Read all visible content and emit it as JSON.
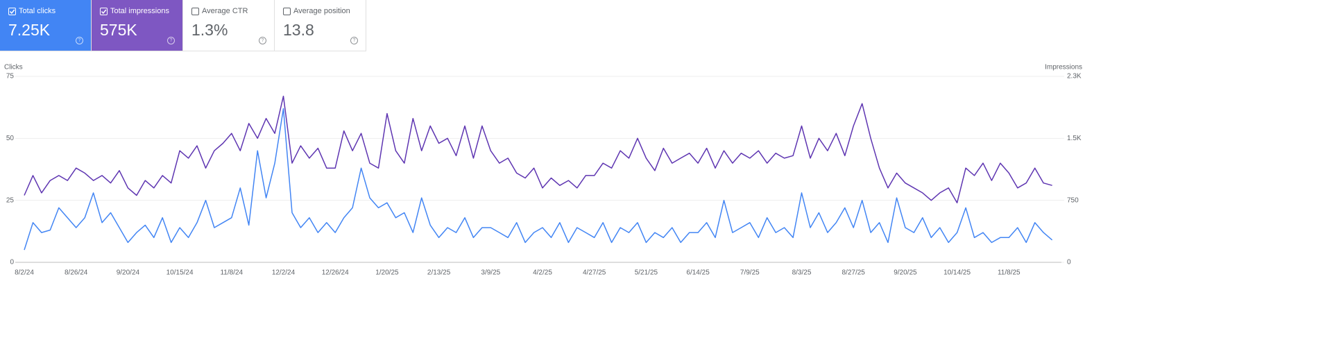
{
  "cards": [
    {
      "label": "Total clicks",
      "value": "7.25K",
      "checked": true,
      "bg": "#4285f4",
      "fg": "#ffffff"
    },
    {
      "label": "Total impressions",
      "value": "575K",
      "checked": true,
      "bg": "#7e57c2",
      "fg": "#ffffff"
    },
    {
      "label": "Average CTR",
      "value": "1.3%",
      "checked": false,
      "bg": "#ffffff",
      "fg": "#5f6368"
    },
    {
      "label": "Average position",
      "value": "13.8",
      "checked": false,
      "bg": "#ffffff",
      "fg": "#5f6368"
    }
  ],
  "chart_data": {
    "type": "line",
    "categories": [
      "8/2/24",
      null,
      null,
      null,
      null,
      null,
      "8/26/24",
      null,
      null,
      null,
      null,
      null,
      "9/20/24",
      null,
      null,
      null,
      null,
      null,
      "10/15/24",
      null,
      null,
      null,
      null,
      null,
      "11/8/24",
      null,
      null,
      null,
      null,
      null,
      "12/2/24",
      null,
      null,
      null,
      null,
      null,
      "12/26/24",
      null,
      null,
      null,
      null,
      null,
      "1/20/25",
      null,
      null,
      null,
      null,
      null,
      "2/13/25",
      null,
      null,
      null,
      null,
      null,
      "3/9/25",
      null,
      null,
      null,
      null,
      null,
      "4/2/25",
      null,
      null,
      null,
      null,
      null,
      "4/27/25",
      null,
      null,
      null,
      null,
      null,
      "5/21/25",
      null,
      null,
      null,
      null,
      null,
      "6/14/25",
      null,
      null,
      null,
      null,
      null,
      "7/9/25",
      null,
      null,
      null,
      null,
      null,
      "8/3/25",
      null,
      null,
      null,
      null,
      null,
      "8/27/25",
      null,
      null,
      null,
      null,
      null,
      "9/20/25",
      null,
      null,
      null,
      null,
      null,
      "10/14/25",
      null,
      null,
      null,
      null,
      null,
      "11/8/25",
      null,
      null,
      null,
      null,
      null
    ],
    "series": [
      {
        "name": "Clicks",
        "color": "#4285f4",
        "values": [
          5,
          16,
          12,
          13,
          22,
          18,
          14,
          18,
          28,
          16,
          20,
          14,
          8,
          12,
          15,
          10,
          18,
          8,
          14,
          10,
          16,
          25,
          14,
          16,
          18,
          30,
          15,
          45,
          26,
          40,
          62,
          20,
          14,
          18,
          12,
          16,
          12,
          18,
          22,
          38,
          26,
          22,
          24,
          18,
          20,
          12,
          26,
          15,
          10,
          14,
          12,
          18,
          10,
          14,
          14,
          12,
          10,
          16,
          8,
          12,
          14,
          10,
          16,
          8,
          14,
          12,
          10,
          16,
          8,
          14,
          12,
          16,
          8,
          12,
          10,
          14,
          8,
          12,
          12,
          16,
          10,
          25,
          12,
          14,
          16,
          10,
          18,
          12,
          14,
          10,
          28,
          14,
          20,
          12,
          16,
          22,
          14,
          25,
          12,
          16,
          8,
          26,
          14,
          12,
          18,
          10,
          14,
          8,
          12,
          22,
          10,
          12,
          8,
          10,
          10,
          14,
          8,
          16,
          12,
          9
        ]
      },
      {
        "name": "Impressions",
        "color": "#5e35b1",
        "axis": "y2",
        "values": [
          810,
          1050,
          840,
          990,
          1050,
          990,
          1140,
          1080,
          990,
          1050,
          960,
          1110,
          900,
          810,
          990,
          900,
          1050,
          960,
          1350,
          1260,
          1410,
          1140,
          1350,
          1440,
          1560,
          1350,
          1680,
          1500,
          1740,
          1560,
          2010,
          1200,
          1410,
          1260,
          1380,
          1140,
          1140,
          1590,
          1350,
          1560,
          1200,
          1140,
          1800,
          1350,
          1200,
          1740,
          1350,
          1650,
          1440,
          1500,
          1290,
          1650,
          1260,
          1650,
          1350,
          1200,
          1260,
          1080,
          1020,
          1140,
          900,
          1020,
          930,
          990,
          900,
          1050,
          1050,
          1200,
          1140,
          1350,
          1260,
          1500,
          1260,
          1110,
          1380,
          1200,
          1260,
          1320,
          1200,
          1380,
          1140,
          1350,
          1200,
          1320,
          1260,
          1350,
          1200,
          1320,
          1260,
          1290,
          1650,
          1260,
          1500,
          1350,
          1560,
          1290,
          1650,
          1920,
          1500,
          1140,
          900,
          1080,
          960,
          900,
          840,
          750,
          840,
          900,
          720,
          1140,
          1050,
          1200,
          990,
          1200,
          1080,
          900,
          960,
          1140,
          960,
          930
        ]
      }
    ],
    "ylim": [
      0,
      75
    ],
    "yticks": [
      0,
      25,
      50,
      75
    ],
    "y2lim": [
      0,
      2250
    ],
    "y2ticks": [
      0,
      750,
      {
        "value": 1500,
        "label": "1.5K"
      },
      {
        "value": 2250,
        "label": "2.3K"
      }
    ],
    "grid": true
  }
}
